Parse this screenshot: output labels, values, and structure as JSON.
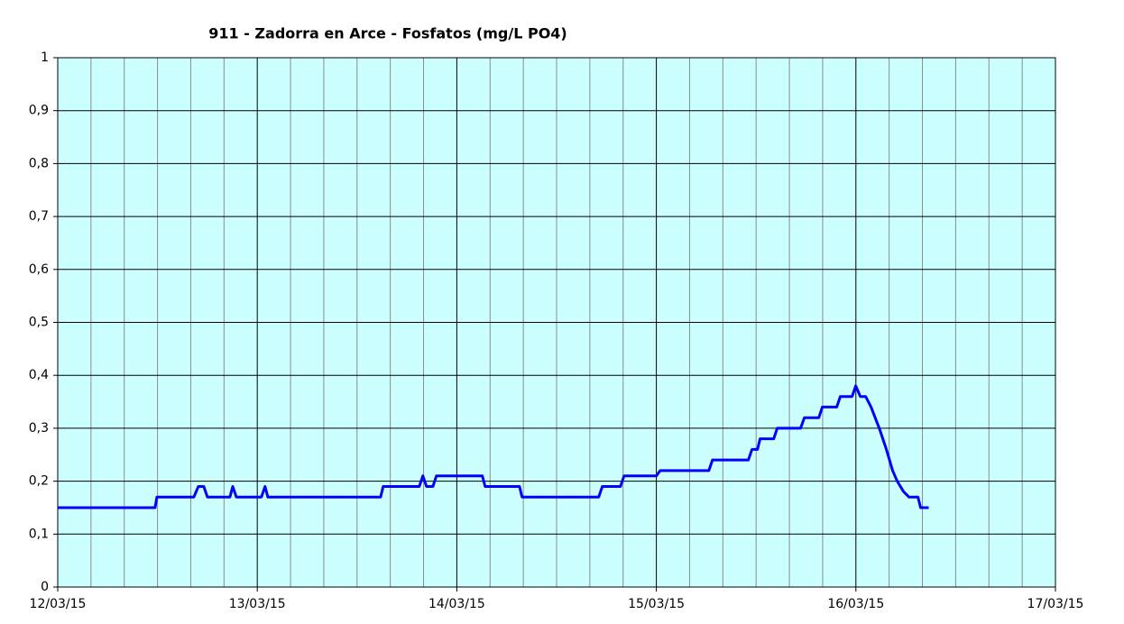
{
  "chart_data": {
    "type": "line",
    "title": "911 - Zadorra en Arce - Fosfatos (mg/L PO4)",
    "xlim": [
      0,
      5
    ],
    "xticks": [
      {
        "value": 0,
        "label": "12/03/15"
      },
      {
        "value": 1,
        "label": "13/03/15"
      },
      {
        "value": 2,
        "label": "14/03/15"
      },
      {
        "value": 3,
        "label": "15/03/15"
      },
      {
        "value": 4,
        "label": "16/03/15"
      },
      {
        "value": 5,
        "label": "17/03/15"
      }
    ],
    "ylim": [
      0,
      1
    ],
    "yticks": [
      0,
      {
        "value": 0.1,
        "label": "0,1"
      },
      {
        "value": 0.2,
        "label": "0,2"
      },
      {
        "value": 0.3,
        "label": "0,3"
      },
      {
        "value": 0.4,
        "label": "0,4"
      },
      {
        "value": 0.5,
        "label": "0,5"
      },
      {
        "value": 0.6,
        "label": "0,6"
      },
      {
        "value": 0.7,
        "label": "0,7"
      },
      {
        "value": 0.8,
        "label": "0,8"
      },
      {
        "value": 0.9,
        "label": "0,9"
      },
      1
    ],
    "grid": true,
    "background": "#ccffff",
    "series": [
      {
        "color": "#0000ff",
        "x": [
          0,
          0.488,
          0.497,
          0.682,
          0.705,
          0.732,
          0.75,
          0.863,
          0.877,
          0.895,
          1.021,
          1.039,
          1.053,
          1.618,
          1.631,
          1.812,
          1.83,
          1.848,
          1.88,
          1.898,
          2.128,
          2.142,
          2.314,
          2.327,
          2.711,
          2.729,
          2.82,
          2.838,
          3.0,
          3.019,
          3.263,
          3.281,
          3.461,
          3.479,
          3.507,
          3.52,
          3.588,
          3.606,
          3.723,
          3.742,
          3.814,
          3.832,
          3.904,
          3.922,
          3.981,
          3.999,
          4.022,
          4.049,
          4.076,
          4.117,
          4.153,
          4.184,
          4.207,
          4.239,
          4.266,
          4.311,
          4.324,
          4.365
        ],
        "values": [
          0.15,
          0.15,
          0.17,
          0.17,
          0.19,
          0.19,
          0.17,
          0.17,
          0.19,
          0.17,
          0.17,
          0.19,
          0.17,
          0.17,
          0.19,
          0.19,
          0.21,
          0.19,
          0.19,
          0.21,
          0.21,
          0.19,
          0.19,
          0.17,
          0.17,
          0.19,
          0.19,
          0.21,
          0.21,
          0.22,
          0.22,
          0.24,
          0.24,
          0.26,
          0.26,
          0.28,
          0.28,
          0.3,
          0.3,
          0.32,
          0.32,
          0.34,
          0.34,
          0.36,
          0.36,
          0.38,
          0.36,
          0.36,
          0.34,
          0.3,
          0.26,
          0.22,
          0.2,
          0.18,
          0.17,
          0.17,
          0.15,
          0.15
        ]
      }
    ]
  }
}
